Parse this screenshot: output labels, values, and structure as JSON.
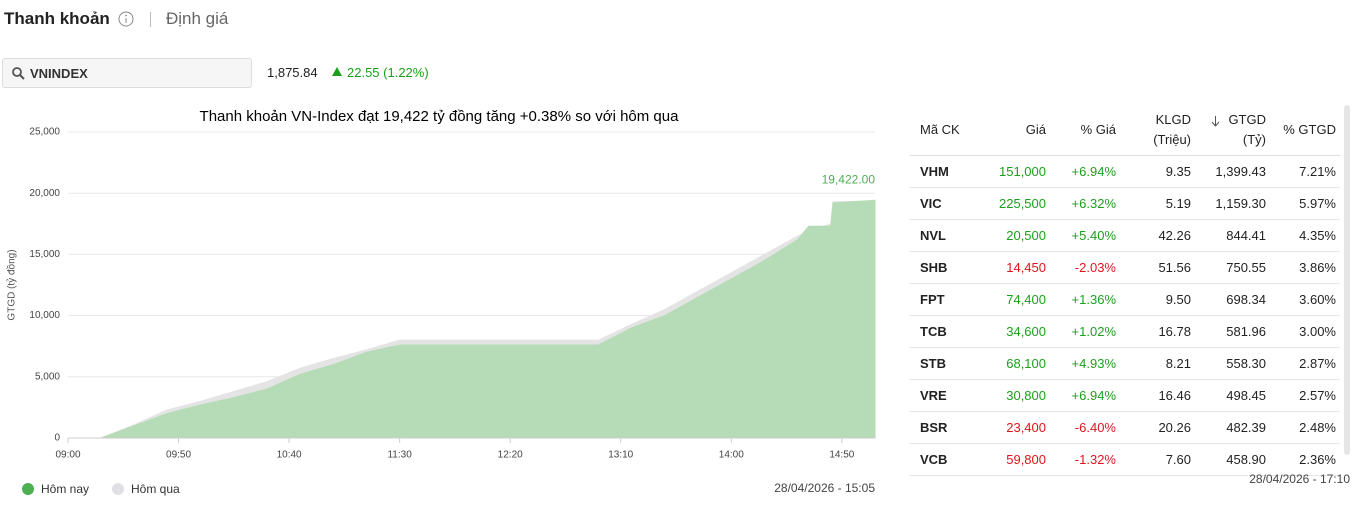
{
  "header": {
    "title": "Thanh khoản",
    "tab": "Định giá"
  },
  "search": {
    "value": "VNINDEX"
  },
  "index": {
    "price": "1,875.84",
    "change": "22.55 (1.22%)"
  },
  "chart_data": {
    "type": "area",
    "title": "Thanh khoản VN-Index đạt 19,422 tỷ đồng tăng +0.38% so với hôm qua",
    "y_label": "GTGD (tỷ đồng)",
    "x": [
      "09:15",
      "09:30",
      "09:45",
      "10:00",
      "10:15",
      "10:30",
      "10:45",
      "11:00",
      "11:15",
      "11:30",
      "13:00",
      "13:15",
      "13:30",
      "13:45",
      "14:00",
      "14:15",
      "14:30",
      "14:35",
      "14:45",
      "14:46",
      "15:05"
    ],
    "series": [
      {
        "name": "Hôm nay",
        "color": "#b5dbb7",
        "legend_color": "#4caf50",
        "values": [
          0,
          1000,
          2000,
          2700,
          3300,
          4000,
          5200,
          6000,
          7000,
          7600,
          7600,
          9000,
          10000,
          11500,
          13000,
          14500,
          16200,
          17300,
          17300,
          19200,
          19422
        ],
        "value_labels": [
          null,
          null,
          null,
          null,
          null,
          null,
          null,
          null,
          null,
          null,
          null,
          null,
          null,
          null,
          null,
          null,
          null,
          null,
          null,
          null,
          "19,422.00"
        ]
      },
      {
        "name": "Hôm qua",
        "color": "#e4e4e4",
        "legend_color": "#e0e0e4",
        "values": [
          0,
          1100,
          2300,
          3000,
          3800,
          4600,
          5700,
          6500,
          7200,
          8000,
          8000,
          9300,
          10500,
          12000,
          13500,
          15000,
          16500,
          16900,
          17500,
          19300,
          19350
        ]
      }
    ],
    "xlim": [
      "09:00",
      "15:05"
    ],
    "xticks": [
      "09:00",
      "09:50",
      "10:40",
      "11:30",
      "12:20",
      "13:10",
      "14:00",
      "14:50"
    ],
    "ylim": [
      0,
      25000
    ],
    "yticks": [
      0,
      {
        "value": 5000,
        "label": "5,000"
      },
      {
        "value": 10000,
        "label": "10,000"
      },
      {
        "value": 15000,
        "label": "15,000"
      },
      {
        "value": 20000,
        "label": "20,000"
      },
      {
        "value": 25000,
        "label": "25,000"
      }
    ],
    "grid": true,
    "timestamp": "28/04/2026 - 15:05"
  },
  "table": {
    "columns": [
      "Mã CK",
      "Giá",
      "% Giá",
      "KLGD (Triệu)",
      "GTGD (Tỷ)",
      "% GTGD"
    ],
    "rows": [
      [
        "VHM",
        "151,000",
        "+6.94%",
        "9.35",
        "1,399.43",
        "7.21%"
      ],
      [
        "VIC",
        "225,500",
        "+6.32%",
        "5.19",
        "1,159.30",
        "5.97%"
      ],
      [
        "NVL",
        "20,500",
        "+5.40%",
        "42.26",
        "844.41",
        "4.35%"
      ],
      [
        "SHB",
        "14,450",
        "-2.03%",
        "51.56",
        "750.55",
        "3.86%"
      ],
      [
        "FPT",
        "74,400",
        "+1.36%",
        "9.50",
        "698.34",
        "3.60%"
      ],
      [
        "TCB",
        "34,600",
        "+1.02%",
        "16.78",
        "581.96",
        "3.00%"
      ],
      [
        "STB",
        "68,100",
        "+4.93%",
        "8.21",
        "558.30",
        "2.87%"
      ],
      [
        "VRE",
        "30,800",
        "+6.94%",
        "16.46",
        "498.45",
        "2.57%"
      ],
      [
        "BSR",
        "23,400",
        "-6.40%",
        "20.26",
        "482.39",
        "2.48%"
      ],
      [
        "VCB",
        "59,800",
        "-1.32%",
        "7.60",
        "458.90",
        "2.36%"
      ]
    ],
    "timestamp": "28/04/2026 - 17:10"
  }
}
